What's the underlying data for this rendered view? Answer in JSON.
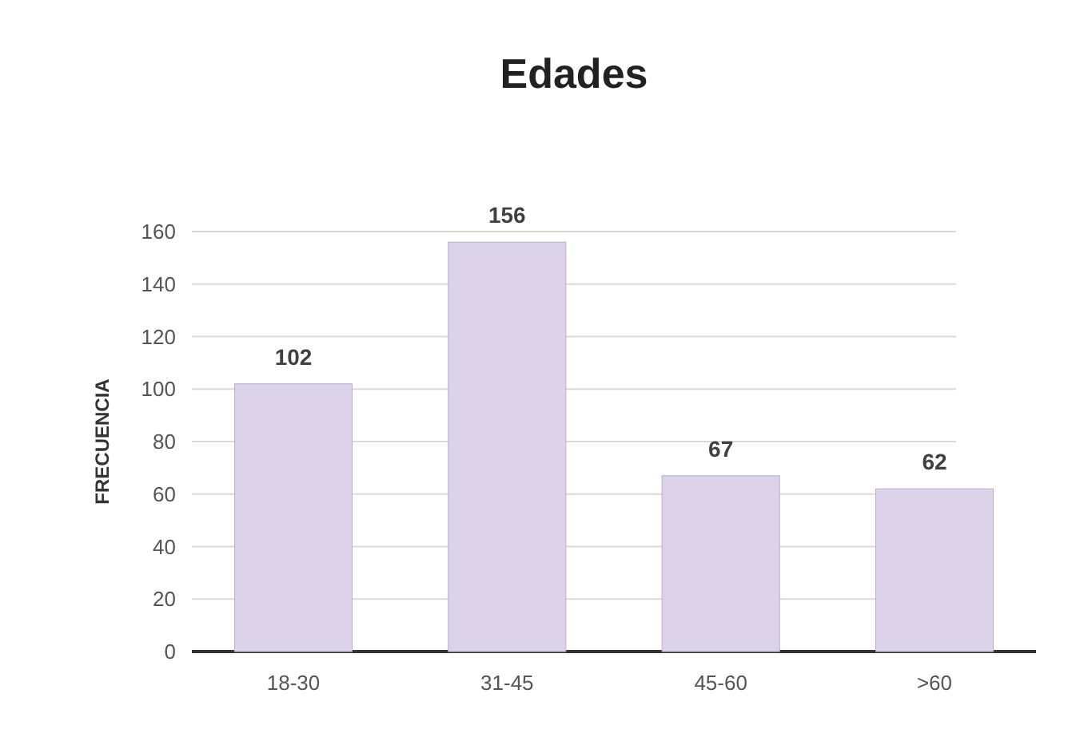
{
  "chart_data": {
    "type": "bar",
    "title": "Edades",
    "ylabel": "FRECUENCIA",
    "categories": [
      "18-30",
      "31-45",
      "45-60",
      ">60"
    ],
    "values": [
      102,
      156,
      67,
      62
    ],
    "color": "#dcd2ea",
    "ylim": [
      0,
      160
    ],
    "yticks": [
      0,
      20,
      40,
      60,
      80,
      100,
      120,
      140,
      160
    ],
    "grid": "y",
    "data_labels": true
  }
}
